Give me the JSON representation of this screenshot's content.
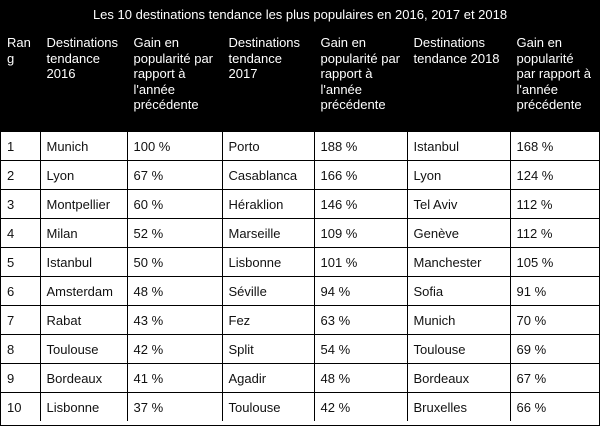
{
  "title": "Les 10 destinations tendance les plus populaires en 2016, 2017 et  2018",
  "headers": [
    "Rang",
    "Destinations tendance 2016",
    "Gain en popularité par rapport à l'année précédente",
    "Destinations tendance 2017",
    "Gain en popularité par rapport à l'année précédente",
    "Destinations tendance 2018",
    "Gain en popularité par rapport à l'année précédente"
  ],
  "rows": [
    [
      "1",
      "Munich",
      "100 %",
      "Porto",
      "188 %",
      "Istanbul",
      "168 %"
    ],
    [
      "2",
      "Lyon",
      "67 %",
      "Casablanca",
      "166 %",
      "Lyon",
      "124 %"
    ],
    [
      "3",
      "Montpellier",
      "60 %",
      "Héraklion",
      "146 %",
      "Tel Aviv",
      "112 %"
    ],
    [
      "4",
      "Milan",
      "52 %",
      "Marseille",
      "109 %",
      "Genève",
      "112 %"
    ],
    [
      "5",
      "Istanbul",
      "50 %",
      "Lisbonne",
      "101 %",
      "Manchester",
      "105 %"
    ],
    [
      "6",
      "Amsterdam",
      "48 %",
      "Séville",
      "94 %",
      "Sofia",
      "91 %"
    ],
    [
      "7",
      "Rabat",
      "43 %",
      "Fez",
      "63 %",
      "Munich",
      "70 %"
    ],
    [
      "8",
      "Toulouse",
      "42 %",
      "Split",
      "54 %",
      "Toulouse",
      "69 %"
    ],
    [
      "9",
      "Bordeaux",
      "41 %",
      "Agadir",
      "48 %",
      "Bordeaux",
      "67 %"
    ],
    [
      "10",
      "Lisbonne",
      "37 %",
      "Toulouse",
      "42 %",
      "Bruxelles",
      "66 %"
    ]
  ]
}
